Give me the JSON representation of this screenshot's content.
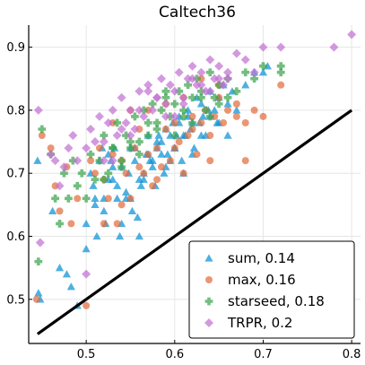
{
  "chart_data": {
    "type": "scatter",
    "title": "Caltech36",
    "xlabel": "",
    "ylabel": "",
    "xlim": [
      0.435,
      0.81
    ],
    "ylim": [
      0.43,
      0.935
    ],
    "x_ticks": [
      0.5,
      0.6,
      0.7,
      0.8
    ],
    "y_ticks": [
      0.5,
      0.6,
      0.7,
      0.8,
      0.9
    ],
    "x_tick_labels": [
      "0.5",
      "0.6",
      "0.7",
      "0.8"
    ],
    "y_tick_labels": [
      "0.5",
      "0.6",
      "0.7",
      "0.8",
      "0.9"
    ],
    "grid": true,
    "legend_position": "bottom-right",
    "reference_line": {
      "x": [
        0.445,
        0.8
      ],
      "y": [
        0.445,
        0.8
      ],
      "color": "#000000"
    },
    "series": [
      {
        "name": "sum, 0.14",
        "marker": "triangle",
        "color": "#0a91d6",
        "x": [
          0.446,
          0.448,
          0.445,
          0.462,
          0.47,
          0.478,
          0.483,
          0.49,
          0.5,
          0.505,
          0.508,
          0.51,
          0.512,
          0.515,
          0.518,
          0.52,
          0.522,
          0.525,
          0.528,
          0.53,
          0.532,
          0.535,
          0.538,
          0.54,
          0.545,
          0.548,
          0.55,
          0.552,
          0.555,
          0.558,
          0.56,
          0.562,
          0.565,
          0.568,
          0.57,
          0.572,
          0.575,
          0.578,
          0.58,
          0.582,
          0.585,
          0.588,
          0.59,
          0.592,
          0.595,
          0.598,
          0.6,
          0.602,
          0.605,
          0.608,
          0.61,
          0.612,
          0.615,
          0.618,
          0.62,
          0.622,
          0.625,
          0.628,
          0.63,
          0.632,
          0.635,
          0.638,
          0.64,
          0.645,
          0.648,
          0.65,
          0.655,
          0.66,
          0.665,
          0.67,
          0.68,
          0.69,
          0.7,
          0.705,
          0.52,
          0.53,
          0.54,
          0.55,
          0.56,
          0.57,
          0.58,
          0.59,
          0.6,
          0.61,
          0.62,
          0.63,
          0.64,
          0.65,
          0.66,
          0.5,
          0.51,
          0.525,
          0.535,
          0.545,
          0.555,
          0.565,
          0.575,
          0.585,
          0.595,
          0.605,
          0.615
        ],
        "y": [
          0.51,
          0.5,
          0.72,
          0.64,
          0.55,
          0.54,
          0.52,
          0.49,
          0.62,
          0.7,
          0.68,
          0.66,
          0.6,
          0.72,
          0.74,
          0.64,
          0.62,
          0.69,
          0.72,
          0.71,
          0.74,
          0.68,
          0.6,
          0.62,
          0.66,
          0.7,
          0.74,
          0.64,
          0.72,
          0.63,
          0.6,
          0.68,
          0.7,
          0.73,
          0.76,
          0.72,
          0.71,
          0.68,
          0.74,
          0.76,
          0.75,
          0.7,
          0.77,
          0.73,
          0.72,
          0.78,
          0.74,
          0.76,
          0.79,
          0.72,
          0.7,
          0.76,
          0.8,
          0.77,
          0.78,
          0.74,
          0.82,
          0.78,
          0.81,
          0.79,
          0.76,
          0.8,
          0.83,
          0.8,
          0.78,
          0.82,
          0.84,
          0.81,
          0.83,
          0.8,
          0.84,
          0.86,
          0.86,
          0.87,
          0.66,
          0.69,
          0.71,
          0.66,
          0.69,
          0.73,
          0.75,
          0.71,
          0.74,
          0.76,
          0.73,
          0.76,
          0.79,
          0.78,
          0.76,
          0.58,
          0.65,
          0.73,
          0.66,
          0.67,
          0.74,
          0.69,
          0.72,
          0.73,
          0.76,
          0.78,
          0.79
        ]
      },
      {
        "name": "max, 0.16",
        "marker": "circle",
        "color": "#e26d40",
        "x": [
          0.444,
          0.45,
          0.46,
          0.465,
          0.47,
          0.478,
          0.483,
          0.49,
          0.5,
          0.505,
          0.51,
          0.515,
          0.52,
          0.525,
          0.53,
          0.535,
          0.54,
          0.545,
          0.55,
          0.555,
          0.56,
          0.565,
          0.57,
          0.575,
          0.58,
          0.585,
          0.59,
          0.595,
          0.6,
          0.605,
          0.61,
          0.615,
          0.62,
          0.625,
          0.63,
          0.635,
          0.64,
          0.645,
          0.65,
          0.655,
          0.66,
          0.67,
          0.68,
          0.69,
          0.7,
          0.72,
          0.68,
          0.52,
          0.54,
          0.56,
          0.58,
          0.6,
          0.62,
          0.64,
          0.53,
          0.55,
          0.57,
          0.59,
          0.61,
          0.63,
          0.65,
          0.67
        ],
        "y": [
          0.5,
          0.76,
          0.74,
          0.68,
          0.64,
          0.71,
          0.62,
          0.66,
          0.49,
          0.72,
          0.7,
          0.74,
          0.69,
          0.66,
          0.73,
          0.62,
          0.72,
          0.7,
          0.66,
          0.74,
          0.77,
          0.7,
          0.73,
          0.68,
          0.74,
          0.71,
          0.77,
          0.72,
          0.78,
          0.75,
          0.7,
          0.76,
          0.79,
          0.73,
          0.78,
          0.8,
          0.76,
          0.79,
          0.82,
          0.78,
          0.8,
          0.79,
          0.78,
          0.8,
          0.79,
          0.84,
          0.72,
          0.62,
          0.65,
          0.71,
          0.69,
          0.74,
          0.77,
          0.72,
          0.78,
          0.8,
          0.8,
          0.81,
          0.82,
          0.85,
          0.84,
          0.81
        ]
      },
      {
        "name": "starseed, 0.18",
        "marker": "cross",
        "color": "#3da44d",
        "x": [
          0.446,
          0.45,
          0.46,
          0.465,
          0.47,
          0.475,
          0.48,
          0.485,
          0.49,
          0.495,
          0.5,
          0.505,
          0.51,
          0.515,
          0.52,
          0.525,
          0.53,
          0.535,
          0.54,
          0.545,
          0.55,
          0.555,
          0.56,
          0.565,
          0.57,
          0.575,
          0.58,
          0.585,
          0.59,
          0.595,
          0.6,
          0.605,
          0.61,
          0.615,
          0.62,
          0.625,
          0.63,
          0.635,
          0.64,
          0.645,
          0.65,
          0.66,
          0.67,
          0.68,
          0.69,
          0.7,
          0.72,
          0.72,
          0.52,
          0.54,
          0.56,
          0.58,
          0.6,
          0.62,
          0.64,
          0.66,
          0.53,
          0.55,
          0.57,
          0.59,
          0.61,
          0.63,
          0.65
        ],
        "y": [
          0.56,
          0.77,
          0.73,
          0.66,
          0.62,
          0.7,
          0.66,
          0.72,
          0.68,
          0.7,
          0.66,
          0.73,
          0.69,
          0.72,
          0.76,
          0.7,
          0.74,
          0.78,
          0.72,
          0.76,
          0.74,
          0.79,
          0.75,
          0.8,
          0.76,
          0.81,
          0.78,
          0.8,
          0.82,
          0.79,
          0.81,
          0.83,
          0.8,
          0.84,
          0.82,
          0.85,
          0.83,
          0.8,
          0.86,
          0.82,
          0.84,
          0.85,
          0.83,
          0.86,
          0.85,
          0.87,
          0.86,
          0.87,
          0.69,
          0.71,
          0.73,
          0.77,
          0.76,
          0.78,
          0.79,
          0.82,
          0.74,
          0.75,
          0.78,
          0.83,
          0.79,
          0.82,
          0.81
        ]
      },
      {
        "name": "TRPR, 0.2",
        "marker": "diamond",
        "color": "#c271d2",
        "x": [
          0.446,
          0.448,
          0.46,
          0.465,
          0.47,
          0.475,
          0.48,
          0.485,
          0.49,
          0.5,
          0.505,
          0.51,
          0.515,
          0.52,
          0.525,
          0.53,
          0.535,
          0.54,
          0.545,
          0.55,
          0.555,
          0.56,
          0.565,
          0.57,
          0.575,
          0.58,
          0.585,
          0.59,
          0.595,
          0.6,
          0.605,
          0.61,
          0.615,
          0.62,
          0.625,
          0.63,
          0.635,
          0.64,
          0.645,
          0.65,
          0.655,
          0.66,
          0.67,
          0.68,
          0.69,
          0.7,
          0.72,
          0.78,
          0.8,
          0.52,
          0.54,
          0.56,
          0.58,
          0.6,
          0.62,
          0.64,
          0.66,
          0.53,
          0.55,
          0.57,
          0.59,
          0.61,
          0.63,
          0.65,
          0.5
        ],
        "y": [
          0.8,
          0.59,
          0.73,
          0.72,
          0.68,
          0.71,
          0.74,
          0.76,
          0.72,
          0.74,
          0.77,
          0.75,
          0.79,
          0.72,
          0.78,
          0.8,
          0.76,
          0.82,
          0.78,
          0.8,
          0.77,
          0.83,
          0.79,
          0.84,
          0.8,
          0.82,
          0.85,
          0.81,
          0.84,
          0.83,
          0.86,
          0.82,
          0.85,
          0.87,
          0.84,
          0.86,
          0.83,
          0.88,
          0.85,
          0.87,
          0.84,
          0.86,
          0.89,
          0.88,
          0.86,
          0.9,
          0.9,
          0.9,
          0.92,
          0.75,
          0.77,
          0.8,
          0.82,
          0.79,
          0.85,
          0.83,
          0.85,
          0.72,
          0.76,
          0.83,
          0.79,
          0.81,
          0.84,
          0.85,
          0.54
        ]
      }
    ]
  }
}
